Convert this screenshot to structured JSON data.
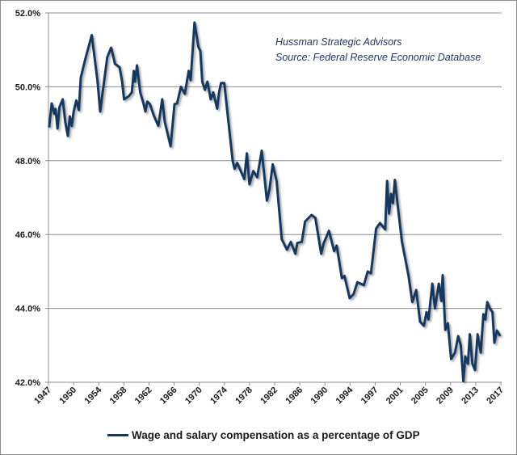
{
  "chart_data": {
    "type": "line",
    "title": "",
    "xlabel": "",
    "ylabel": "",
    "ylim": [
      42.0,
      52.0
    ],
    "yticks": [
      "42.0%",
      "44.0%",
      "46.0%",
      "48.0%",
      "50.0%",
      "52.0%"
    ],
    "ytick_values": [
      42,
      44,
      46,
      48,
      50,
      52
    ],
    "xticks": [
      "1947",
      "1950",
      "1954",
      "1958",
      "1962",
      "1966",
      "1970",
      "1974",
      "1978",
      "1982",
      "1986",
      "1990",
      "1994",
      "1997",
      "2001",
      "2005",
      "2009",
      "2013",
      "2017"
    ],
    "xlim": [
      1947,
      2017
    ],
    "grid": "horizontal",
    "legend_position": "bottom",
    "annotations": [
      "Hussman Strategic Advisors",
      "Source: Federal Reserve Economic Database"
    ],
    "color": "#17375e",
    "series": [
      {
        "name": "Wage and salary compensation as a percentage of GDP",
        "x": [
          1947.1,
          1947.5,
          1947.9,
          1948.1,
          1948.4,
          1948.7,
          1949.2,
          1949.6,
          1950.0,
          1950.3,
          1950.6,
          1950.9,
          1951.3,
          1951.7,
          1952.0,
          1952.7,
          1953.7,
          1954.6,
          1955.0,
          1955.6,
          1956.1,
          1956.7,
          1957.3,
          1958.0,
          1958.4,
          1958.7,
          1959.4,
          1959.9,
          1960.2,
          1960.4,
          1960.7,
          1961.2,
          1961.7,
          1962.0,
          1962.3,
          1962.7,
          1963.3,
          1964.0,
          1964.6,
          1965.0,
          1965.9,
          1966.5,
          1966.9,
          1967.5,
          1968.1,
          1968.7,
          1969.0,
          1969.6,
          1970.2,
          1970.5,
          1970.8,
          1971.2,
          1971.6,
          1972.1,
          1972.5,
          1973.1,
          1973.4,
          1973.7,
          1974.2,
          1975.5,
          1975.8,
          1976.2,
          1977.3,
          1977.7,
          1978.1,
          1978.7,
          1979.3,
          1980.0,
          1980.8,
          1981.2,
          1981.7,
          1982.3,
          1983.1,
          1983.9,
          1984.5,
          1985.2,
          1985.5,
          1986.2,
          1986.7,
          1987.7,
          1988.3,
          1989.2,
          1989.6,
          1990.4,
          1991.2,
          1991.6,
          1992.4,
          1992.8,
          1993.6,
          1994.2,
          1994.8,
          1995.8,
          1996.4,
          1996.9,
          1997.7,
          1998.3,
          1999.1,
          1999.4,
          1999.7,
          2000.0,
          2000.3,
          2000.6,
          2001.1,
          2001.7,
          2002.7,
          2003.3,
          2003.9,
          2004.5,
          2005.1,
          2005.5,
          2005.8,
          2006.4,
          2006.8,
          2007.4,
          2007.8,
          2008.0,
          2008.4,
          2008.8,
          2009.3,
          2009.9,
          2010.4,
          2010.8,
          2011.2,
          2011.5,
          2011.9,
          2012.2,
          2012.6,
          2013.0,
          2013.4,
          2013.9,
          2014.3,
          2014.6,
          2014.9,
          2015.3,
          2015.7,
          2016.0,
          2016.4,
          2016.9
        ],
        "values": [
          48.9,
          49.55,
          49.27,
          49.4,
          48.87,
          49.45,
          49.66,
          49.05,
          48.67,
          49.2,
          48.94,
          49.33,
          49.63,
          49.37,
          50.25,
          50.75,
          51.4,
          50.14,
          49.33,
          50.14,
          50.8,
          51.06,
          50.62,
          50.53,
          50.14,
          49.66,
          49.74,
          49.85,
          50.43,
          50.14,
          50.58,
          49.85,
          49.55,
          49.33,
          49.6,
          49.53,
          49.22,
          48.94,
          49.66,
          49.05,
          48.39,
          49.53,
          49.55,
          50.0,
          49.81,
          50.43,
          50.18,
          51.74,
          51.08,
          50.97,
          50.14,
          49.92,
          50.14,
          49.66,
          49.85,
          49.41,
          49.85,
          50.1,
          50.1,
          48.0,
          47.78,
          47.94,
          47.5,
          48.2,
          47.36,
          47.72,
          47.55,
          48.27,
          46.92,
          47.22,
          47.9,
          47.45,
          45.87,
          45.59,
          45.8,
          45.48,
          45.77,
          45.8,
          46.35,
          46.53,
          46.45,
          45.48,
          45.77,
          46.1,
          45.55,
          45.7,
          44.82,
          44.88,
          44.28,
          44.38,
          44.71,
          44.63,
          45.0,
          44.95,
          46.16,
          46.31,
          46.14,
          47.45,
          46.57,
          47.1,
          46.85,
          47.48,
          46.7,
          45.8,
          44.9,
          44.17,
          44.5,
          43.64,
          43.53,
          43.9,
          43.7,
          44.67,
          44.0,
          44.67,
          44.2,
          44.9,
          43.42,
          43.6,
          42.63,
          42.8,
          43.25,
          43.0,
          42.03,
          42.7,
          42.5,
          43.3,
          42.5,
          42.33,
          43.3,
          42.8,
          43.84,
          43.7,
          44.17,
          44.0,
          43.9,
          43.07,
          43.4,
          43.25
        ]
      }
    ]
  }
}
